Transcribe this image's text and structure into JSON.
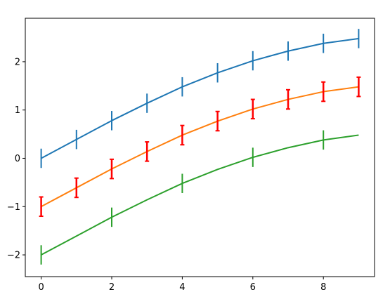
{
  "chart_data": {
    "type": "line",
    "title": "",
    "xlabel": "",
    "ylabel": "",
    "x": [
      0,
      1,
      2,
      3,
      4,
      5,
      6,
      7,
      8,
      9
    ],
    "xlim": [
      -0.45,
      9.45
    ],
    "ylim": [
      -2.45,
      2.9
    ],
    "xticks": [
      0,
      2,
      4,
      6,
      8
    ],
    "yticks": [
      -2,
      -1,
      0,
      1,
      2
    ],
    "xtick_labels": [
      "0",
      "2",
      "4",
      "6",
      "8"
    ],
    "ytick_labels": [
      "−2",
      "−1",
      "0",
      "1",
      "2"
    ],
    "grid": false,
    "legend": "none",
    "series": [
      {
        "color": "#1f77b4",
        "errorbar_color": "#1f77b4",
        "values": [
          0.0,
          0.39,
          0.78,
          1.14,
          1.48,
          1.77,
          2.02,
          2.22,
          2.38,
          2.48
        ],
        "yerr": [
          0.2,
          0.2,
          0.2,
          0.2,
          0.2,
          0.2,
          0.2,
          0.2,
          0.2,
          0.2
        ],
        "errorbar_points": [
          0,
          1,
          2,
          3,
          4,
          5,
          6,
          7,
          8,
          9
        ]
      },
      {
        "color": "#ff7f0e",
        "errorbar_color": "#ff0000",
        "values": [
          -1.0,
          -0.61,
          -0.22,
          0.14,
          0.48,
          0.77,
          1.02,
          1.22,
          1.38,
          1.48
        ],
        "yerr": [
          0.2,
          0.2,
          0.2,
          0.2,
          0.2,
          0.2,
          0.2,
          0.2,
          0.2,
          0.2
        ],
        "errorbar_points": [
          0,
          1,
          2,
          3,
          4,
          5,
          6,
          7,
          8,
          9
        ]
      },
      {
        "color": "#2ca02c",
        "errorbar_color": "#2ca02c",
        "values": [
          -2.0,
          -1.61,
          -1.22,
          -0.86,
          -0.52,
          -0.23,
          0.02,
          0.22,
          0.38,
          0.48
        ],
        "yerr": [
          0.2,
          0.2,
          0.2,
          0.2,
          0.2,
          0.2,
          0.2,
          0.2,
          0.2,
          0.2
        ],
        "errorbar_points": [
          0,
          2,
          4,
          6,
          8
        ]
      }
    ]
  }
}
